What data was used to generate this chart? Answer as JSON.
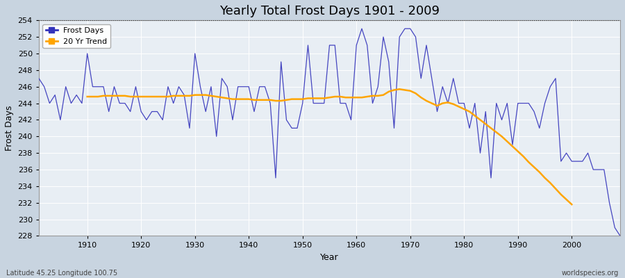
{
  "title": "Yearly Total Frost Days 1901 - 2009",
  "xlabel": "Year",
  "ylabel": "Frost Days",
  "footnote_left": "Latitude 45.25 Longitude 100.75",
  "footnote_right": "worldspecies.org",
  "legend_entries": [
    "Frost Days",
    "20 Yr Trend"
  ],
  "line_color": "#3333bb",
  "trend_color": "#FFA500",
  "background_color": "#e8eef4",
  "fig_background": "#c8d4e0",
  "ylim": [
    228,
    254
  ],
  "xlim": [
    1901,
    2009
  ],
  "yticks": [
    228,
    230,
    232,
    234,
    236,
    238,
    240,
    242,
    244,
    246,
    248,
    250,
    252,
    254
  ],
  "xticks": [
    1910,
    1920,
    1930,
    1940,
    1950,
    1960,
    1970,
    1980,
    1990,
    2000
  ],
  "frost_years": [
    1901,
    1902,
    1903,
    1904,
    1905,
    1906,
    1907,
    1908,
    1909,
    1910,
    1911,
    1912,
    1913,
    1914,
    1915,
    1916,
    1917,
    1918,
    1919,
    1920,
    1921,
    1922,
    1923,
    1924,
    1925,
    1926,
    1927,
    1928,
    1929,
    1930,
    1931,
    1932,
    1933,
    1934,
    1935,
    1936,
    1937,
    1938,
    1939,
    1940,
    1941,
    1942,
    1943,
    1944,
    1945,
    1946,
    1947,
    1948,
    1949,
    1950,
    1951,
    1952,
    1953,
    1954,
    1955,
    1956,
    1957,
    1958,
    1959,
    1960,
    1961,
    1962,
    1963,
    1964,
    1965,
    1966,
    1967,
    1968,
    1969,
    1970,
    1971,
    1972,
    1973,
    1974,
    1975,
    1976,
    1977,
    1978,
    1979,
    1980,
    1981,
    1982,
    1983,
    1984,
    1985,
    1986,
    1987,
    1988,
    1989,
    1990,
    1991,
    1992,
    1993,
    1994,
    1995,
    1996,
    1997,
    1998,
    1999,
    2000,
    2001,
    2002,
    2003,
    2004,
    2005,
    2006,
    2007,
    2008,
    2009
  ],
  "frost_values": [
    247,
    246,
    244,
    245,
    242,
    246,
    244,
    245,
    244,
    250,
    246,
    246,
    246,
    243,
    246,
    244,
    244,
    243,
    246,
    243,
    242,
    243,
    243,
    242,
    246,
    244,
    246,
    245,
    241,
    250,
    246,
    243,
    246,
    240,
    247,
    246,
    242,
    246,
    246,
    246,
    243,
    246,
    246,
    244,
    235,
    249,
    242,
    241,
    241,
    244,
    251,
    244,
    244,
    244,
    251,
    251,
    244,
    244,
    242,
    251,
    253,
    251,
    244,
    246,
    252,
    249,
    241,
    252,
    253,
    253,
    252,
    247,
    251,
    247,
    243,
    246,
    244,
    247,
    244,
    244,
    241,
    244,
    238,
    243,
    235,
    244,
    242,
    244,
    239,
    244,
    244,
    244,
    243,
    241,
    244,
    246,
    247,
    237,
    238,
    237,
    237,
    237,
    238,
    236,
    236,
    236,
    232,
    229,
    228
  ],
  "trend_years": [
    1910,
    1911,
    1912,
    1913,
    1914,
    1915,
    1916,
    1917,
    1918,
    1919,
    1920,
    1921,
    1922,
    1923,
    1924,
    1925,
    1926,
    1927,
    1928,
    1929,
    1930,
    1931,
    1932,
    1933,
    1934,
    1935,
    1936,
    1937,
    1938,
    1939,
    1940,
    1941,
    1942,
    1943,
    1944,
    1945,
    1946,
    1947,
    1948,
    1949,
    1950,
    1951,
    1952,
    1953,
    1954,
    1955,
    1956,
    1957,
    1958,
    1959,
    1960,
    1961,
    1962,
    1963,
    1964,
    1965,
    1966,
    1967,
    1968,
    1969,
    1970,
    1971,
    1972,
    1973,
    1974,
    1975,
    1976,
    1977,
    1978,
    1979,
    1980,
    1981,
    1982,
    1983,
    1984,
    1985,
    1986,
    1987,
    1988,
    1989,
    1990,
    1991,
    1992,
    1993,
    1994,
    1995,
    1996,
    1997,
    1998,
    1999,
    2000
  ],
  "trend_values": [
    244.8,
    244.8,
    244.8,
    244.9,
    244.9,
    244.9,
    244.9,
    244.9,
    244.8,
    244.8,
    244.8,
    244.8,
    244.8,
    244.8,
    244.8,
    244.8,
    244.9,
    244.9,
    244.9,
    244.9,
    245.0,
    245.0,
    245.0,
    244.9,
    244.8,
    244.7,
    244.6,
    244.5,
    244.5,
    244.5,
    244.5,
    244.4,
    244.4,
    244.4,
    244.4,
    244.3,
    244.3,
    244.4,
    244.5,
    244.5,
    244.5,
    244.6,
    244.6,
    244.6,
    244.6,
    244.7,
    244.8,
    244.8,
    244.7,
    244.7,
    244.7,
    244.7,
    244.8,
    244.9,
    244.9,
    245.0,
    245.4,
    245.6,
    245.7,
    245.6,
    245.5,
    245.2,
    244.7,
    244.3,
    244.0,
    243.7,
    244.0,
    244.1,
    243.9,
    243.6,
    243.3,
    243.0,
    242.5,
    242.0,
    241.5,
    241.0,
    240.5,
    240.0,
    239.4,
    238.8,
    238.2,
    237.6,
    236.9,
    236.3,
    235.7,
    235.0,
    234.4,
    233.7,
    233.0,
    232.4,
    231.8
  ]
}
